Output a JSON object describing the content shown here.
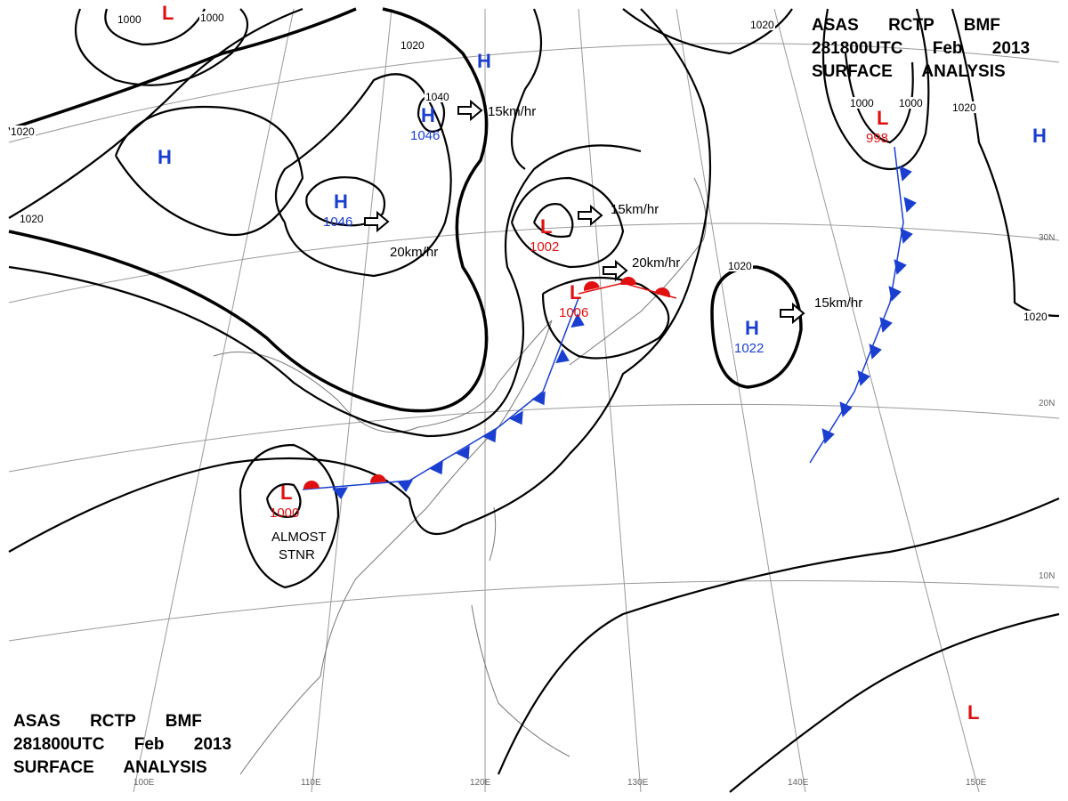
{
  "title_blocks": [
    {
      "lines": [
        "ASAS RCTP BMF",
        "281800UTC Feb 2013",
        "SURFACE ANALYSIS"
      ]
    },
    {
      "lines": [
        "ASAS RCTP BMF",
        "281800UTC Feb 2013",
        "SURFACE ANALYSIS"
      ]
    }
  ],
  "centers": [
    {
      "symbol": "H",
      "pressure": 1046
    },
    {
      "symbol": "H",
      "pressure": 1046
    },
    {
      "symbol": "H"
    },
    {
      "symbol": "H"
    },
    {
      "symbol": "H"
    },
    {
      "symbol": "H",
      "pressure": 1022
    },
    {
      "symbol": "L"
    },
    {
      "symbol": "L",
      "pressure": 998
    },
    {
      "symbol": "L",
      "pressure": 1002
    },
    {
      "symbol": "L",
      "pressure": 1006
    },
    {
      "symbol": "L",
      "pressure": 1000
    },
    {
      "symbol": "L"
    }
  ],
  "motions": [
    "15km/hr",
    "20km/hr",
    "15km/hr",
    "20km/hr",
    "15km/hr"
  ],
  "isobar_labels": [
    "1040",
    "1020",
    "1020",
    "1000",
    "1000",
    "1020",
    "1020",
    "1000",
    "1000",
    "1020",
    "1020",
    "1020"
  ],
  "note": [
    "ALMOST",
    "STNR"
  ],
  "latitudes": [
    "30N",
    "20N",
    "10N"
  ],
  "longitudes": [
    "100E",
    "110E",
    "120E",
    "130E",
    "140E",
    "150E"
  ]
}
